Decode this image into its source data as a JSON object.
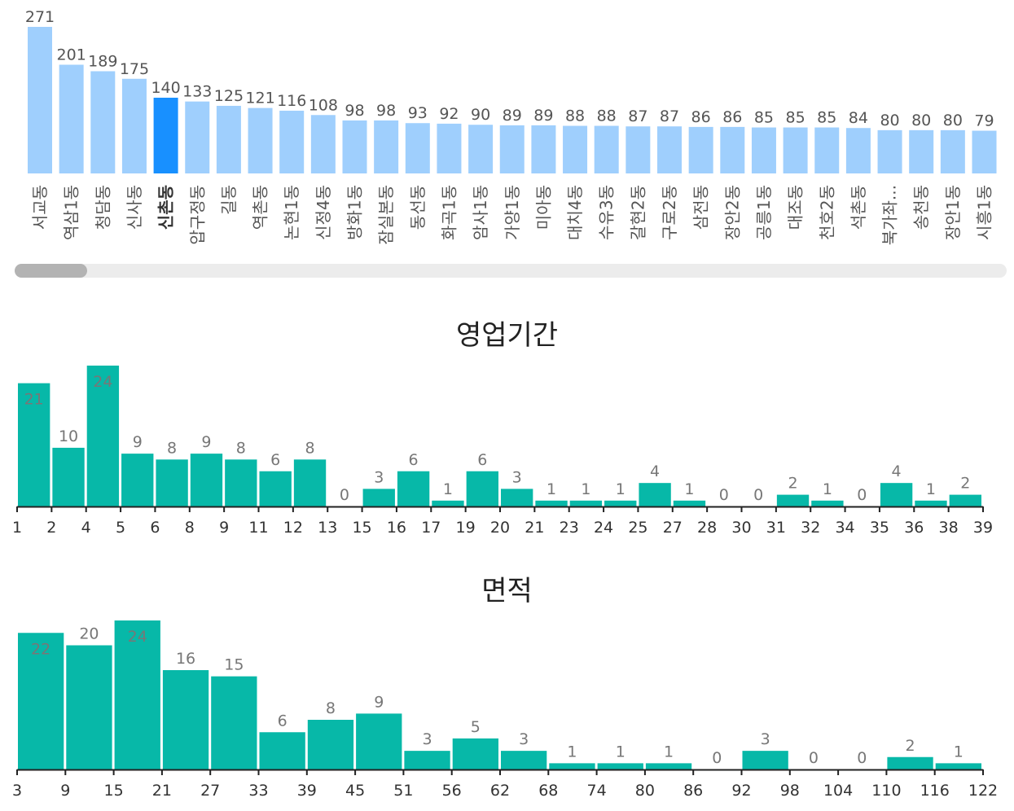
{
  "chart_data": [
    {
      "type": "bar",
      "title": "",
      "categories": [
        "서교동",
        "역삼1동",
        "청담동",
        "신사동",
        "신촌동",
        "압구정동",
        "길동",
        "역촌동",
        "논현1동",
        "신정4동",
        "방화1동",
        "잠실본동",
        "동선동",
        "화곡1동",
        "암사1동",
        "가양1동",
        "미아동",
        "대치4동",
        "수유3동",
        "갈현2동",
        "구로2동",
        "삼전동",
        "장안2동",
        "공릉1동",
        "대조동",
        "천호2동",
        "석촌동",
        "북가좌...",
        "송천동",
        "장안1동",
        "시흥1동"
      ],
      "values": [
        271,
        201,
        189,
        175,
        140,
        133,
        125,
        121,
        116,
        108,
        98,
        98,
        93,
        92,
        90,
        89,
        89,
        88,
        88,
        87,
        87,
        86,
        86,
        85,
        85,
        85,
        84,
        80,
        80,
        80,
        79
      ],
      "highlight": "신촌동",
      "colors": {
        "bar": "#9fcffd",
        "highlight": "#1890ff",
        "label": "#555555"
      }
    },
    {
      "type": "bar",
      "title": "영업기간",
      "x_ticks": [
        "1",
        "2",
        "4",
        "5",
        "6",
        "8",
        "9",
        "11",
        "12",
        "13",
        "15",
        "16",
        "17",
        "19",
        "20",
        "21",
        "23",
        "24",
        "25",
        "27",
        "28",
        "30",
        "31",
        "32",
        "34",
        "35",
        "36",
        "38",
        "39"
      ],
      "values": [
        21,
        10,
        24,
        9,
        8,
        9,
        8,
        6,
        8,
        0,
        3,
        6,
        1,
        6,
        3,
        1,
        1,
        1,
        4,
        1,
        0,
        0,
        2,
        1,
        0,
        4,
        1,
        2
      ],
      "colors": {
        "bar": "#07b8a8"
      }
    },
    {
      "type": "bar",
      "title": "면적",
      "x_ticks": [
        "3",
        "9",
        "15",
        "21",
        "27",
        "33",
        "39",
        "45",
        "51",
        "56",
        "62",
        "68",
        "74",
        "80",
        "86",
        "92",
        "98",
        "104",
        "110",
        "116",
        "122"
      ],
      "values": [
        22,
        20,
        24,
        16,
        15,
        6,
        8,
        9,
        3,
        5,
        3,
        1,
        1,
        1,
        0,
        3,
        0,
        0,
        2,
        1
      ],
      "colors": {
        "bar": "#07b8a8"
      }
    }
  ]
}
